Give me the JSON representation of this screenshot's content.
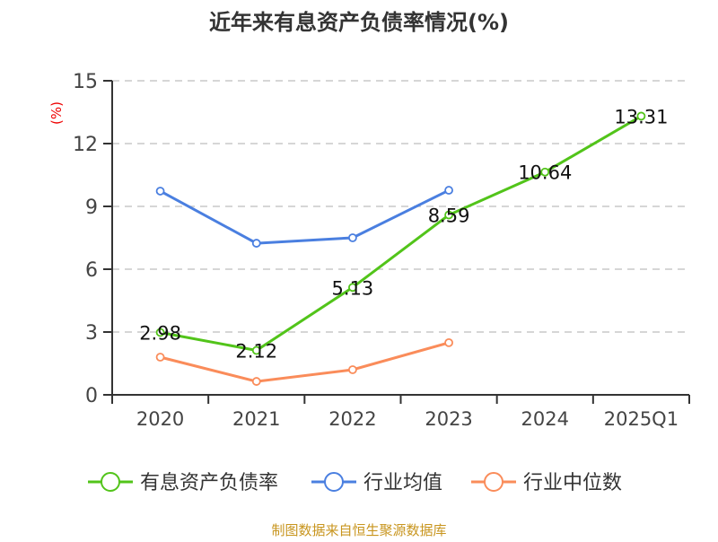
{
  "chart_data": {
    "type": "line",
    "title": "近年来有息资产负债率情况(%)",
    "ylabel": "(%)",
    "xlabel": "",
    "ylim": [
      0,
      15
    ],
    "yticks": [
      0,
      3,
      6,
      9,
      12,
      15
    ],
    "grid": true,
    "legend_position": "bottom",
    "categories": [
      "2020",
      "2021",
      "2022",
      "2023",
      "2024",
      "2025Q1"
    ],
    "series": [
      {
        "name": "有息资产负债率",
        "color": "#52c41a",
        "values": [
          2.98,
          2.12,
          5.13,
          8.59,
          10.64,
          13.31
        ],
        "labels": [
          "2.98",
          "2.12",
          "5.13",
          "8.59",
          "10.64",
          "13.31"
        ]
      },
      {
        "name": "行业均值",
        "color": "#4a7fe0",
        "values": [
          9.73,
          7.24,
          7.5,
          9.77,
          null,
          null
        ]
      },
      {
        "name": "行业中位数",
        "color": "#fa8c5a",
        "values": [
          1.8,
          0.64,
          1.2,
          2.49,
          null,
          null
        ]
      }
    ]
  },
  "footer": {
    "source": "制图数据来自恒生聚源数据库"
  }
}
